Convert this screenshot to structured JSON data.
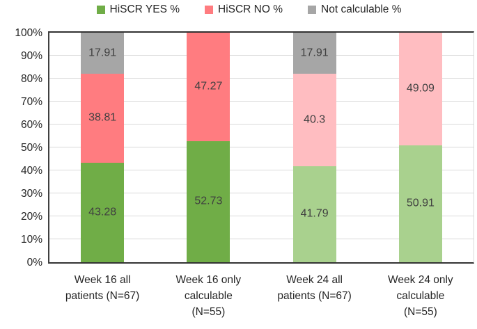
{
  "legend": {
    "items": [
      {
        "label": "HiSCR YES %",
        "color": "#70AD47"
      },
      {
        "label": "HiSCR NO %",
        "color": "#FF7C80"
      },
      {
        "label": "Not calculable %",
        "color": "#A6A6A6"
      }
    ]
  },
  "axis": {
    "ytick_labels": [
      "0%",
      "10%",
      "20%",
      "30%",
      "40%",
      "50%",
      "60%",
      "70%",
      "80%",
      "90%",
      "100%"
    ]
  },
  "colors": {
    "green_dark": "#70AD47",
    "green_light": "#A9D18E",
    "red_dark": "#FF7C80",
    "red_light": "#FFBDC1",
    "gray": "#A6A6A6",
    "gridline": "#D9D9D9",
    "text": "#262626"
  },
  "chart_data": {
    "type": "bar",
    "stacked": true,
    "title": "",
    "xlabel": "",
    "ylabel": "",
    "ylim": [
      0,
      100
    ],
    "grid": true,
    "legend_position": "top",
    "categories": [
      "Week 16 all patients (N=67)",
      "Week 16 only calculable (N=55)",
      "Week 24 all patients (N=67)",
      "Week 24 only calculable (N=55)"
    ],
    "category_label_lines": [
      [
        "Week 16 all",
        "patients (N=67)"
      ],
      [
        "Week 16 only",
        "calculable",
        "(N=55)"
      ],
      [
        "Week 24 all",
        "patients (N=67)"
      ],
      [
        "Week 24 only",
        "calculable",
        "(N=55)"
      ]
    ],
    "series": [
      {
        "name": "HiSCR YES %",
        "values": [
          43.28,
          52.73,
          41.79,
          50.91
        ],
        "labels": [
          "43.28",
          "52.73",
          "41.79",
          "50.91"
        ],
        "colors": [
          "#70AD47",
          "#70AD47",
          "#A9D18E",
          "#A9D18E"
        ]
      },
      {
        "name": "HiSCR NO %",
        "values": [
          38.81,
          47.27,
          40.3,
          49.09
        ],
        "labels": [
          "38.81",
          "47.27",
          "40.3",
          "49.09"
        ],
        "colors": [
          "#FF7C80",
          "#FF7C80",
          "#FFBDC1",
          "#FFBDC1"
        ]
      },
      {
        "name": "Not calculable %",
        "values": [
          17.91,
          0,
          17.91,
          0
        ],
        "labels": [
          "17.91",
          "",
          "17.91",
          ""
        ],
        "colors": [
          "#A6A6A6",
          "#A6A6A6",
          "#A6A6A6",
          "#A6A6A6"
        ]
      }
    ]
  }
}
